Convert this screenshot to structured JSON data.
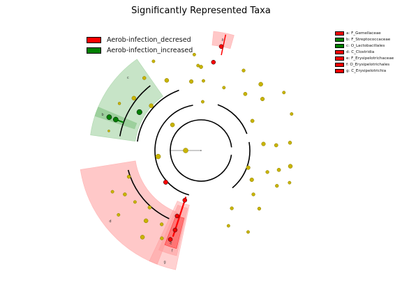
{
  "title": "Significantly Represented Taxa",
  "legend": [
    {
      "label": "Aerob-infection_decresed",
      "color": "#ff0000"
    },
    {
      "label": "Aerob-infection_increased",
      "color": "#008000"
    }
  ],
  "taxa_key": [
    {
      "label": "a: F_Gemellaceae",
      "color": "#ff0000"
    },
    {
      "label": "b: F_Streptococcaceae",
      "color": "#008000"
    },
    {
      "label": "c: O_Lactobacillales",
      "color": "#008000"
    },
    {
      "label": "d: C_Clostridia",
      "color": "#ff0000"
    },
    {
      "label": "e: F_Erysipelotrichaceae",
      "color": "#ff0000"
    },
    {
      "label": "f: O_Erysipelotrichales",
      "color": "#ff0000"
    },
    {
      "label": "g: C_Erysipelotrichia",
      "color": "#ff0000"
    }
  ],
  "clade_letters": [
    "a",
    "b",
    "c",
    "d",
    "e",
    "f",
    "g"
  ],
  "colors": {
    "node": "#c8b400",
    "node_edge": "#8a7a00",
    "decreased": "#ff0000",
    "increased": "#008000",
    "red_shade": "#ff9a9a",
    "green_shade": "#8fc98f"
  }
}
